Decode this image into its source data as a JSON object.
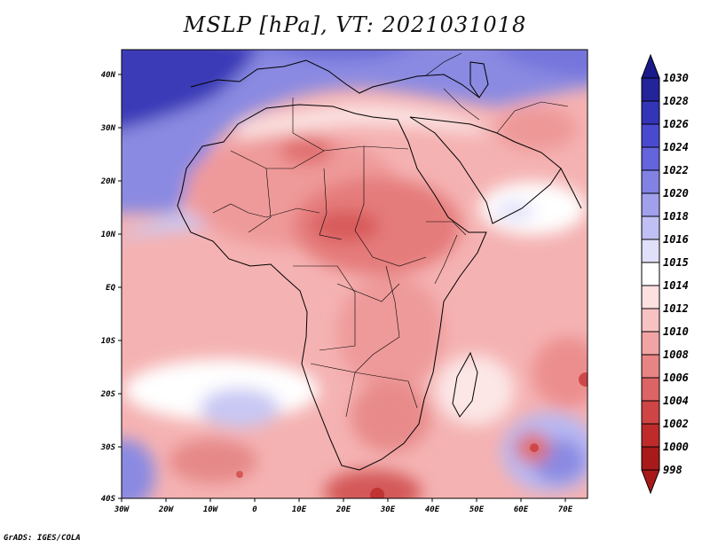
{
  "title": "MSLP [hPa], VT: 2021031018",
  "credit": "GrADS: IGES/COLA",
  "lon_ticks": [
    "30W",
    "20W",
    "10W",
    "0",
    "10E",
    "20E",
    "30E",
    "40E",
    "50E",
    "60E",
    "70E"
  ],
  "lat_ticks": [
    "40N",
    "30N",
    "20N",
    "10N",
    "EQ",
    "10S",
    "20S",
    "30S",
    "40S"
  ],
  "colorbar": {
    "top_label": "1030",
    "levels": [
      "1028",
      "1026",
      "1024",
      "1022",
      "1020",
      "1018",
      "1016",
      "1015",
      "1014",
      "1012",
      "1010",
      "1008",
      "1006",
      "1004",
      "1002",
      "1000",
      "998"
    ],
    "colors": [
      "#23239a",
      "#3434b8",
      "#4a4ad0",
      "#6464dc",
      "#8282e4",
      "#a0a0ec",
      "#c0c0f4",
      "#e0e0fa",
      "#ffffff",
      "#fde0e0",
      "#f9c2c2",
      "#f1a4a4",
      "#e98484",
      "#dd6464",
      "#cf4545",
      "#bf2b2b",
      "#a81a1a"
    ]
  }
}
